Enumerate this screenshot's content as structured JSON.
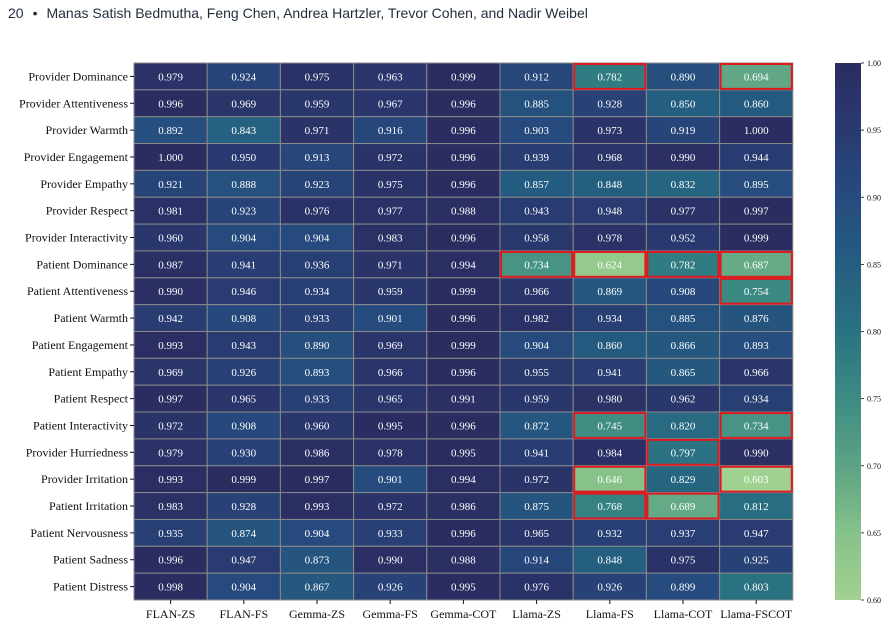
{
  "header": {
    "page_number": "20",
    "separator": "•",
    "authors": "Manas Satish Bedmutha, Feng Chen, Andrea Hartzler, Trevor Cohen, and Nadir Weibel"
  },
  "chart_data": {
    "type": "heatmap",
    "title": "",
    "xlabel": "",
    "ylabel": "",
    "columns": [
      "FLAN-ZS",
      "FLAN-FS",
      "Gemma-ZS",
      "Gemma-FS",
      "Gemma-COT",
      "Llama-ZS",
      "Llama-FS",
      "Llama-COT",
      "Llama-FSCOT"
    ],
    "rows": [
      "Provider Dominance",
      "Provider Attentiveness",
      "Provider Warmth",
      "Provider Engagement",
      "Provider Empathy",
      "Provider Respect",
      "Provider Interactivity",
      "Patient Dominance",
      "Patient Attentiveness",
      "Patient Warmth",
      "Patient Engagement",
      "Patient Empathy",
      "Patient Respect",
      "Patient Interactivity",
      "Provider Hurriedness",
      "Provider Irritation",
      "Patient Irritation",
      "Patient Nervousness",
      "Patient Sadness",
      "Patient Distress"
    ],
    "values": [
      [
        "0.979",
        "0.924",
        "0.975",
        "0.963",
        "0.999",
        "0.912",
        "0.782",
        "0.890",
        "0.694"
      ],
      [
        "0.996",
        "0.969",
        "0.959",
        "0.967",
        "0.996",
        "0.885",
        "0.928",
        "0.850",
        "0.860"
      ],
      [
        "0.892",
        "0.843",
        "0.971",
        "0.916",
        "0.996",
        "0.903",
        "0.973",
        "0.919",
        "1.000"
      ],
      [
        "1.000",
        "0.950",
        "0.913",
        "0.972",
        "0.996",
        "0.939",
        "0.968",
        "0.990",
        "0.944"
      ],
      [
        "0.921",
        "0.888",
        "0.923",
        "0.975",
        "0.996",
        "0.857",
        "0.848",
        "0.832",
        "0.895"
      ],
      [
        "0.981",
        "0.923",
        "0.976",
        "0.977",
        "0.988",
        "0.943",
        "0.948",
        "0.977",
        "0.997"
      ],
      [
        "0.960",
        "0.904",
        "0.904",
        "0.983",
        "0.996",
        "0.958",
        "0.978",
        "0.952",
        "0.999"
      ],
      [
        "0.987",
        "0.941",
        "0.936",
        "0.971",
        "0.994",
        "0.734",
        "0.624",
        "0.782",
        "0.687"
      ],
      [
        "0.990",
        "0.946",
        "0.934",
        "0.959",
        "0.999",
        "0.966",
        "0.869",
        "0.908",
        "0.754"
      ],
      [
        "0.942",
        "0.908",
        "0.933",
        "0.901",
        "0.996",
        "0.982",
        "0.934",
        "0.885",
        "0.876"
      ],
      [
        "0.993",
        "0.943",
        "0.890",
        "0.969",
        "0.999",
        "0.904",
        "0.860",
        "0.866",
        "0.893"
      ],
      [
        "0.969",
        "0.926",
        "0.893",
        "0.966",
        "0.996",
        "0.955",
        "0.941",
        "0.865",
        "0.966"
      ],
      [
        "0.997",
        "0.965",
        "0.933",
        "0.965",
        "0.991",
        "0.959",
        "0.980",
        "0.962",
        "0.934"
      ],
      [
        "0.972",
        "0.908",
        "0.960",
        "0.995",
        "0.996",
        "0.872",
        "0.745",
        "0.820",
        "0.734"
      ],
      [
        "0.979",
        "0.930",
        "0.986",
        "0.978",
        "0.995",
        "0.941",
        "0.984",
        "0.797",
        "0.990"
      ],
      [
        "0.993",
        "0.999",
        "0.997",
        "0.901",
        "0.994",
        "0.972",
        "0.646",
        "0.829",
        "0.603"
      ],
      [
        "0.983",
        "0.928",
        "0.993",
        "0.972",
        "0.986",
        "0.875",
        "0.768",
        "0.689",
        "0.812"
      ],
      [
        "0.935",
        "0.874",
        "0.904",
        "0.933",
        "0.996",
        "0.965",
        "0.932",
        "0.937",
        "0.947"
      ],
      [
        "0.996",
        "0.947",
        "0.873",
        "0.990",
        "0.988",
        "0.914",
        "0.848",
        "0.975",
        "0.925"
      ],
      [
        "0.998",
        "0.904",
        "0.867",
        "0.926",
        "0.995",
        "0.976",
        "0.926",
        "0.899",
        "0.803"
      ]
    ],
    "highlight_threshold": 0.8,
    "highlight_color": "#e0191f",
    "colorbar": {
      "min": 0.6,
      "max": 1.0,
      "ticks": [
        "0.60",
        "0.65",
        "0.70",
        "0.75",
        "0.80",
        "0.85",
        "0.90",
        "0.95",
        "1.00"
      ],
      "colormap": [
        "#a3d290",
        "#85c18a",
        "#5ca385",
        "#3d8b83",
        "#2a7282",
        "#245e80",
        "#264b7e",
        "#293a70",
        "#2b2c60"
      ]
    },
    "legend": "colorbar right",
    "grid": true
  }
}
